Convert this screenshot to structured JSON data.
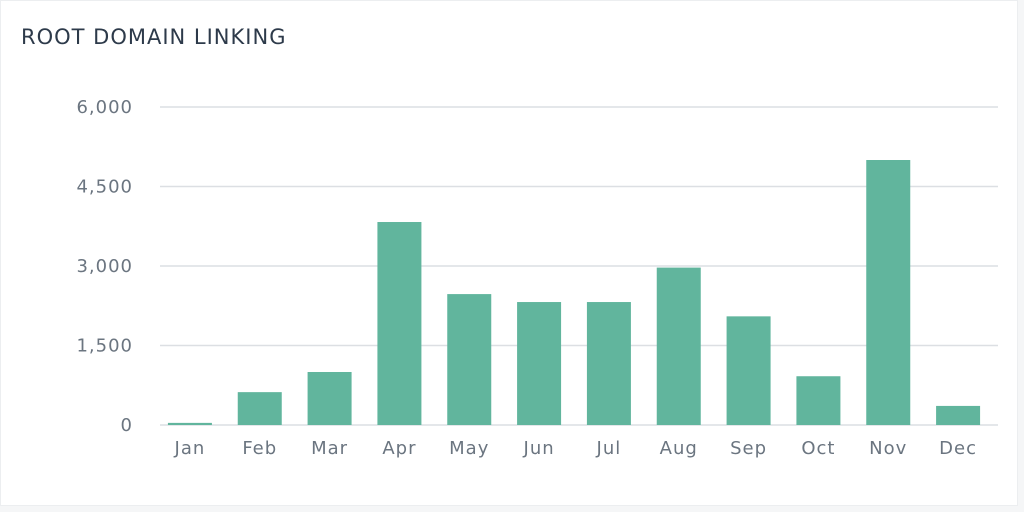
{
  "card": {
    "title": "ROOT DOMAIN LINKING"
  },
  "colors": {
    "bar": "#61b59d",
    "grid": "#dcdfe3",
    "text": "#6b7580",
    "title": "#2d3a4a"
  },
  "chart_data": {
    "type": "bar",
    "title": "ROOT DOMAIN LINKING",
    "xlabel": "",
    "ylabel": "",
    "categories": [
      "Jan",
      "Feb",
      "Mar",
      "Apr",
      "May",
      "Jun",
      "Jul",
      "Aug",
      "Sep",
      "Oct",
      "Nov",
      "Dec"
    ],
    "values": [
      40,
      620,
      1000,
      3830,
      2470,
      2320,
      2320,
      2970,
      2050,
      920,
      5000,
      360
    ],
    "ylim": [
      0,
      6000
    ],
    "yticks": [
      0,
      1500,
      3000,
      4500,
      6000
    ],
    "ytick_labels": [
      "0",
      "1,500",
      "3,000",
      "4,500",
      "6,000"
    ],
    "grid": true,
    "legend": "none"
  }
}
